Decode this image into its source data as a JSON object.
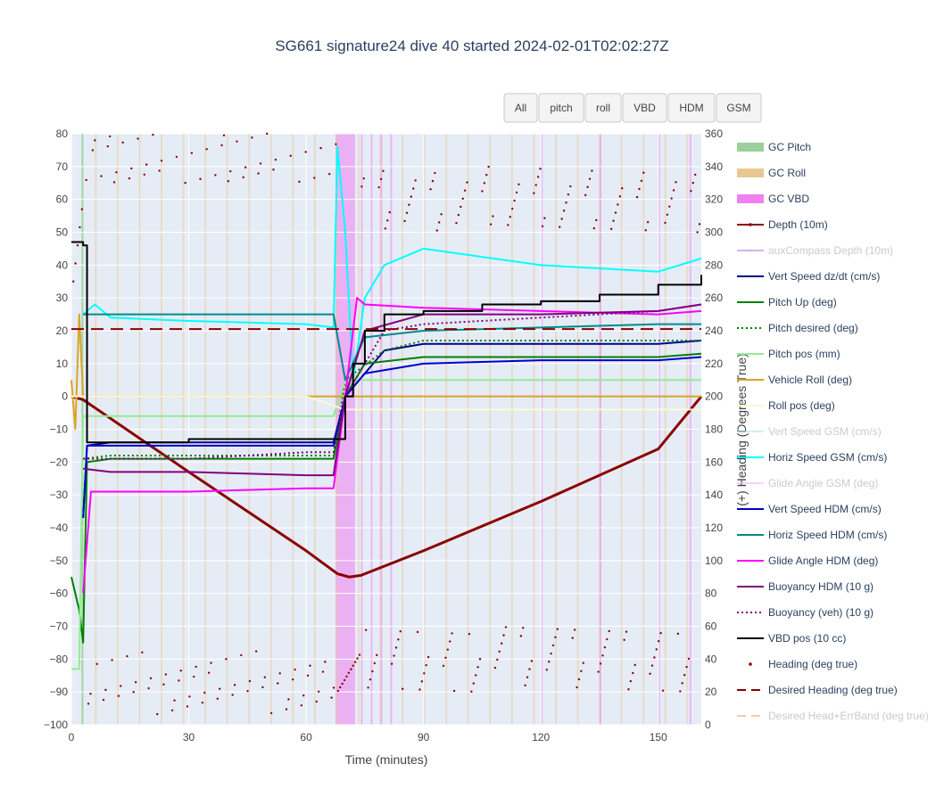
{
  "chart_data": {
    "type": "line",
    "title": "SG661 signature24 dive 40 started 2024-02-01T02:02:27Z",
    "xlabel": "Time (minutes)",
    "ylabel": "",
    "y2label": "(+) Heading (Degrees True)",
    "xlim": [
      0,
      161
    ],
    "ylim": [
      -100,
      80
    ],
    "y2lim": [
      0,
      360
    ],
    "x_ticks": [
      "0",
      "30",
      "60",
      "90",
      "120",
      "150"
    ],
    "x_tick_values": [
      0,
      30,
      60,
      90,
      120,
      150
    ],
    "y_ticks": [
      "−100",
      "−90",
      "−80",
      "−70",
      "−60",
      "−50",
      "−40",
      "−30",
      "−20",
      "−10",
      "0",
      "10",
      "20",
      "30",
      "40",
      "50",
      "60",
      "70",
      "80"
    ],
    "y_tick_values": [
      -100,
      -90,
      -80,
      -70,
      -60,
      -50,
      -40,
      -30,
      -20,
      -10,
      0,
      10,
      20,
      30,
      40,
      50,
      60,
      70,
      80
    ],
    "y2_ticks": [
      "0",
      "20",
      "40",
      "60",
      "80",
      "100",
      "120",
      "140",
      "160",
      "180",
      "200",
      "220",
      "240",
      "260",
      "280",
      "300",
      "320",
      "340",
      "360"
    ],
    "y2_tick_values": [
      0,
      20,
      40,
      60,
      80,
      100,
      120,
      140,
      160,
      180,
      200,
      220,
      240,
      260,
      280,
      300,
      320,
      340,
      360
    ],
    "grid": true,
    "legend_placement": "right",
    "buttons": [
      "All",
      "pitch",
      "roll",
      "VBD",
      "HDM",
      "GSM"
    ],
    "series": [
      {
        "name": "GC Pitch",
        "color": "#9ad09a",
        "style": "band",
        "visible": true
      },
      {
        "name": "GC Roll",
        "color": "#e8c890",
        "style": "band",
        "visible": true
      },
      {
        "name": "GC VBD",
        "color": "#f080f0",
        "style": "band",
        "visible": true
      },
      {
        "name": "Depth (10m)",
        "color": "#8b0000",
        "style": "line",
        "visible": true,
        "x": [
          0,
          3,
          30,
          60,
          68,
          71,
          74,
          90,
          120,
          150,
          161
        ],
        "values": [
          0,
          -1,
          -23,
          -47,
          -54,
          -55,
          -54.5,
          -47,
          -32,
          -16,
          0
        ]
      },
      {
        "name": "auxCompass Depth (10m)",
        "color": "#b07ad8",
        "style": "line",
        "visible": false
      },
      {
        "name": "Vert Speed dz/dt (cm/s)",
        "color": "#00008b",
        "style": "line",
        "visible": true,
        "x": [
          3,
          4,
          10,
          30,
          60,
          67,
          70,
          80,
          90,
          120,
          150,
          161
        ],
        "values": [
          -37,
          -15,
          -14,
          -14,
          -14,
          -14,
          0,
          14,
          16,
          16,
          16,
          17
        ]
      },
      {
        "name": "Pitch Up (deg)",
        "color": "#008000",
        "style": "line",
        "visible": true,
        "x": [
          0,
          2,
          3,
          4,
          10,
          30,
          60,
          67,
          70,
          75,
          90,
          120,
          150,
          161
        ],
        "values": [
          -55,
          -65,
          -75,
          -20,
          -19,
          -19,
          -19,
          -19,
          0,
          10,
          12,
          12,
          12,
          13
        ]
      },
      {
        "name": "Pitch desired (deg)",
        "color": "#008000",
        "style": "dot",
        "visible": true,
        "x": [
          3,
          10,
          30,
          60,
          67,
          70,
          80,
          90,
          120,
          150,
          161
        ],
        "values": [
          -19,
          -18,
          -18,
          -18,
          -18,
          5,
          14,
          17,
          17,
          17,
          17
        ]
      },
      {
        "name": "Pitch pos (mm)",
        "color": "#90ee90",
        "style": "line",
        "visible": true,
        "x": [
          0,
          2,
          3,
          10,
          30,
          60,
          67,
          70,
          90,
          120,
          161
        ],
        "values": [
          -83,
          -83,
          -6,
          -6,
          -6,
          -6,
          -6,
          5,
          5,
          5,
          5
        ]
      },
      {
        "name": "Vehicle Roll (deg)",
        "color": "#daa520",
        "style": "line",
        "visible": true,
        "x": [
          0,
          1,
          2,
          3,
          5,
          30,
          60,
          68,
          70,
          75,
          90,
          120,
          150,
          161
        ],
        "values": [
          5,
          -10,
          25,
          0,
          0,
          0,
          0,
          0,
          0,
          0,
          0,
          0,
          0,
          0
        ]
      },
      {
        "name": "Roll pos (deg)",
        "color": "#fafad2",
        "style": "line",
        "visible": true,
        "x": [
          0,
          10,
          30,
          60,
          70,
          90,
          120,
          161
        ],
        "values": [
          0,
          0,
          0,
          0,
          -4,
          -4,
          -4,
          -4
        ]
      },
      {
        "name": "Vert Speed GSM (cm/s)",
        "color": "#b0e0f0",
        "style": "line",
        "visible": false
      },
      {
        "name": "Horiz Speed GSM (cm/s)",
        "color": "#00ffff",
        "style": "line",
        "visible": true,
        "x": [
          3,
          6,
          10,
          30,
          60,
          67,
          68,
          70,
          72,
          75,
          80,
          90,
          120,
          150,
          161
        ],
        "values": [
          25,
          28,
          24,
          23,
          22,
          21,
          76,
          50,
          5,
          30,
          40,
          45,
          40,
          38,
          42
        ]
      },
      {
        "name": "Glide Angle GSM (deg)",
        "color": "#f0b0f0",
        "style": "line",
        "visible": false
      },
      {
        "name": "Vert Speed HDM (cm/s)",
        "color": "#0000cd",
        "style": "line",
        "visible": true,
        "x": [
          3,
          4,
          10,
          30,
          60,
          67,
          70,
          75,
          90,
          120,
          150,
          161
        ],
        "values": [
          -37,
          -15,
          -15,
          -15,
          -15,
          -15,
          0,
          7,
          10,
          11,
          11,
          12
        ]
      },
      {
        "name": "Horiz Speed HDM (cm/s)",
        "color": "#008b8b",
        "style": "line",
        "visible": true,
        "x": [
          3,
          10,
          30,
          60,
          67,
          70,
          75,
          90,
          120,
          150,
          161
        ],
        "values": [
          25,
          25,
          25,
          25,
          25,
          5,
          18,
          20,
          21,
          22,
          22
        ]
      },
      {
        "name": "Glide Angle HDM (deg)",
        "color": "#ff00ff",
        "style": "line",
        "visible": true,
        "x": [
          3,
          5,
          10,
          30,
          60,
          67,
          70,
          73,
          75,
          90,
          120,
          150,
          161
        ],
        "values": [
          -60,
          -29,
          -29,
          -29,
          -28,
          -28,
          0,
          30,
          28,
          27,
          26,
          25,
          26
        ]
      },
      {
        "name": "Buoyancy HDM (10 g)",
        "color": "#800080",
        "style": "line",
        "visible": true,
        "x": [
          3,
          10,
          30,
          60,
          67,
          70,
          75,
          90,
          120,
          150,
          161
        ],
        "values": [
          -22,
          -23,
          -23,
          -24,
          -24,
          0,
          20,
          25,
          25,
          26,
          28
        ]
      },
      {
        "name": "Buoyancy (veh) (10 g)",
        "color": "#800080",
        "style": "dot",
        "visible": true,
        "x": [
          3,
          10,
          30,
          60,
          67,
          70,
          80,
          90,
          120,
          150,
          161
        ],
        "values": [
          -19,
          -19,
          -19,
          -17,
          -17,
          0,
          20,
          22,
          24,
          26,
          28
        ]
      },
      {
        "name": "VBD pos (10 cc)",
        "color": "#000000",
        "style": "step",
        "visible": true,
        "x": [
          0,
          3,
          4,
          30,
          60,
          67,
          70,
          72,
          75,
          80,
          90,
          105,
          120,
          135,
          150,
          161
        ],
        "values": [
          47,
          46,
          -14,
          -13,
          -13,
          -13,
          0,
          10,
          20,
          25,
          26,
          28,
          29,
          31,
          34,
          37
        ]
      },
      {
        "name": "Heading (deg true)",
        "color": "#8b0000",
        "style": "markers",
        "visible": true,
        "axis": "y2"
      },
      {
        "name": "Desired Heading (deg true)",
        "color": "#8b0000",
        "style": "dash",
        "visible": true,
        "axis": "y2",
        "x": [
          0,
          161
        ],
        "values": [
          241,
          241
        ]
      },
      {
        "name": "Desired Head+ErrBand (deg true)",
        "color": "#e8a070",
        "style": "dash",
        "visible": false,
        "axis": "y2"
      }
    ]
  }
}
